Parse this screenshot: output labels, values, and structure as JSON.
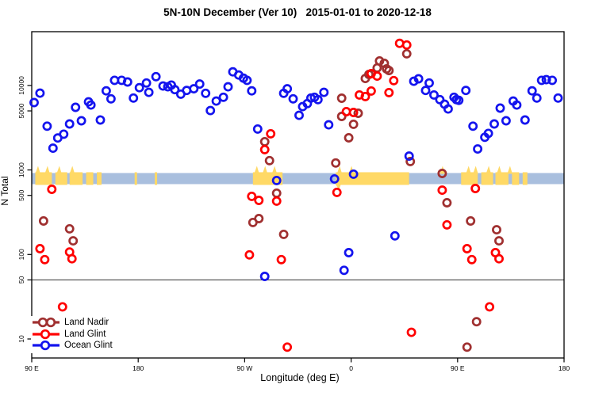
{
  "title": "5N-10N December (Ver 10)   2015-01-01 to 2020-12-18",
  "axes": {
    "y_label": "N Total",
    "x_label": "Longitude (deg E)",
    "x_ticks": [
      {
        "lon": 90,
        "label": "90 E"
      },
      {
        "lon": 180,
        "label": "180"
      },
      {
        "lon": 270,
        "label": "90 W"
      },
      {
        "lon": 360,
        "label": "0"
      },
      {
        "lon": 450,
        "label": "90 E"
      },
      {
        "lon": 540,
        "label": "180"
      }
    ],
    "y_ticks": [
      {
        "n": 10,
        "label": "10"
      },
      {
        "n": 50,
        "label": "50"
      },
      {
        "n": 100,
        "label": "100"
      },
      {
        "n": 500,
        "label": "500"
      },
      {
        "n": 1000,
        "label": "1000"
      },
      {
        "n": 5000,
        "label": "5000"
      },
      {
        "n": 10000,
        "label": "10000"
      }
    ]
  },
  "colors": {
    "land_nadir": "#A03030",
    "land_glint": "#FF0000",
    "ocean_glint": "#1414EE",
    "band_ocean": "#A9BFDE",
    "band_land": "#FFD966",
    "axis": "#000000",
    "separator": "#444444"
  },
  "legend": {
    "items": [
      {
        "key": "land_nadir",
        "label": "Land Nadir"
      },
      {
        "key": "land_glint",
        "label": "Land Glint"
      },
      {
        "key": "ocean_glint",
        "label": "Ocean Glint"
      }
    ]
  },
  "chart_data": {
    "type": "scatter",
    "title": "5N-10N December (Ver 10)   2015-01-01 to 2020-12-18",
    "xlabel": "Longitude (deg E)",
    "ylabel": "N Total",
    "x_axis_note": "longitude in deg E, wrapped: axis runs 90E -> 180 -> 90W -> 0 -> 90E -> 180 (values 90..540)",
    "y_scale": "log10",
    "xlim": [
      90,
      540
    ],
    "ylim": [
      7,
      45000
    ],
    "grid": false,
    "legend_position": "bottom-left",
    "separator_line_n": 50,
    "land_ocean_band": {
      "n_range": [
        680,
        920
      ],
      "ocean_color": "#A9BFDE",
      "land_color": "#FFD966",
      "land_segments_lon": [
        [
          93,
          107
        ],
        [
          110,
          120
        ],
        [
          122,
          133
        ],
        [
          136,
          142
        ],
        [
          145,
          149
        ],
        [
          177,
          179
        ],
        [
          194,
          196
        ],
        [
          277,
          302
        ],
        [
          347,
          409
        ],
        [
          453,
          467
        ],
        [
          470,
          480
        ],
        [
          482,
          493
        ],
        [
          496,
          502
        ],
        [
          505,
          509
        ]
      ],
      "land_spikes_lon": [
        95,
        103,
        113,
        124,
        280,
        287,
        295,
        350,
        360,
        437,
        459,
        465,
        476,
        485,
        494
      ],
      "land_downspike_lon": [
        349
      ]
    },
    "series": [
      {
        "name": "Land Nadir",
        "color": "#A03030",
        "points": [
          [
            100,
            249
          ],
          [
            122,
            201
          ],
          [
            125,
            145
          ],
          [
            98,
            8
          ],
          [
            106,
            16
          ],
          [
            277,
            239
          ],
          [
            282,
            266
          ],
          [
            287,
            2160
          ],
          [
            291,
            1290
          ],
          [
            297,
            531
          ],
          [
            303,
            173
          ],
          [
            347,
            1210
          ],
          [
            352,
            7060
          ],
          [
            352,
            4300
          ],
          [
            358,
            2400
          ],
          [
            362,
            3470
          ],
          [
            366,
            4690
          ],
          [
            372,
            12100
          ],
          [
            375,
            13500
          ],
          [
            382,
            16100
          ],
          [
            384,
            19500
          ],
          [
            388,
            18300
          ],
          [
            390,
            15700
          ],
          [
            392,
            15000
          ],
          [
            407,
            23700
          ],
          [
            410,
            1260
          ],
          [
            437,
            910
          ],
          [
            441,
            409
          ],
          [
            458,
            8
          ],
          [
            461,
            249
          ],
          [
            466,
            16
          ],
          [
            483,
            196
          ],
          [
            485,
            145
          ]
        ]
      },
      {
        "name": "Land Glint",
        "color": "#FF0000",
        "points": [
          [
            107,
            591
          ],
          [
            97,
            117
          ],
          [
            101,
            87
          ],
          [
            122,
            107
          ],
          [
            124,
            89
          ],
          [
            116,
            24
          ],
          [
            274,
            99
          ],
          [
            276,
            487
          ],
          [
            282,
            437
          ],
          [
            287,
            1740
          ],
          [
            292,
            2680
          ],
          [
            297,
            428
          ],
          [
            301,
            87
          ],
          [
            306,
            8
          ],
          [
            348,
            543
          ],
          [
            356,
            4900
          ],
          [
            362,
            4790
          ],
          [
            367,
            7720
          ],
          [
            372,
            7390
          ],
          [
            377,
            13800
          ],
          [
            377,
            8600
          ],
          [
            382,
            12900
          ],
          [
            392,
            8230
          ],
          [
            396,
            11400
          ],
          [
            401,
            31500
          ],
          [
            407,
            30100
          ],
          [
            411,
            12
          ],
          [
            437,
            577
          ],
          [
            441,
            224
          ],
          [
            458,
            117
          ],
          [
            462,
            87
          ],
          [
            465,
            604
          ],
          [
            477,
            24
          ],
          [
            482,
            105
          ],
          [
            485,
            89
          ]
        ]
      },
      {
        "name": "Ocean Glint",
        "color": "#1414EE",
        "points": [
          [
            92,
            6270
          ],
          [
            97,
            8110
          ],
          [
            103,
            3300
          ],
          [
            108,
            1810
          ],
          [
            112,
            2390
          ],
          [
            117,
            2650
          ],
          [
            122,
            3500
          ],
          [
            127,
            5510
          ],
          [
            132,
            3820
          ],
          [
            138,
            6400
          ],
          [
            140,
            5870
          ],
          [
            148,
            3900
          ],
          [
            153,
            8630
          ],
          [
            157,
            6940
          ],
          [
            160,
            11500
          ],
          [
            166,
            11500
          ],
          [
            171,
            11000
          ],
          [
            176,
            7090
          ],
          [
            181,
            9420
          ],
          [
            187,
            10700
          ],
          [
            189,
            8290
          ],
          [
            195,
            12700
          ],
          [
            201,
            9860
          ],
          [
            205,
            9650
          ],
          [
            208,
            10100
          ],
          [
            211,
            8920
          ],
          [
            216,
            7890
          ],
          [
            221,
            8730
          ],
          [
            227,
            9130
          ],
          [
            232,
            10400
          ],
          [
            237,
            8070
          ],
          [
            241,
            5050
          ],
          [
            246,
            6530
          ],
          [
            252,
            7250
          ],
          [
            256,
            9650
          ],
          [
            260,
            14500
          ],
          [
            265,
            13300
          ],
          [
            269,
            12200
          ],
          [
            272,
            11500
          ],
          [
            276,
            8630
          ],
          [
            281,
            3050
          ],
          [
            287,
            55
          ],
          [
            297,
            750
          ],
          [
            303,
            8070
          ],
          [
            306,
            9130
          ],
          [
            311,
            6940
          ],
          [
            316,
            4430
          ],
          [
            319,
            5620
          ],
          [
            323,
            6100
          ],
          [
            326,
            7090
          ],
          [
            329,
            7250
          ],
          [
            332,
            6790
          ],
          [
            337,
            8290
          ],
          [
            341,
            3420
          ],
          [
            346,
            784
          ],
          [
            354,
            65
          ],
          [
            358,
            105
          ],
          [
            362,
            891
          ],
          [
            397,
            166
          ],
          [
            409,
            1460
          ],
          [
            413,
            11200
          ],
          [
            417,
            12000
          ],
          [
            423,
            8730
          ],
          [
            426,
            10700
          ],
          [
            430,
            7720
          ],
          [
            435,
            6790
          ],
          [
            439,
            5990
          ],
          [
            442,
            5270
          ],
          [
            447,
            7250
          ],
          [
            449,
            6790
          ],
          [
            451,
            6660
          ],
          [
            457,
            8730
          ],
          [
            463,
            3300
          ],
          [
            467,
            1770
          ],
          [
            473,
            2440
          ],
          [
            476,
            2710
          ],
          [
            481,
            3500
          ],
          [
            486,
            5390
          ],
          [
            491,
            3820
          ],
          [
            497,
            6530
          ],
          [
            500,
            5870
          ],
          [
            507,
            3900
          ],
          [
            513,
            8630
          ],
          [
            517,
            7090
          ],
          [
            521,
            11500
          ],
          [
            525,
            11700
          ],
          [
            530,
            11500
          ],
          [
            535,
            7090
          ]
        ]
      }
    ]
  }
}
